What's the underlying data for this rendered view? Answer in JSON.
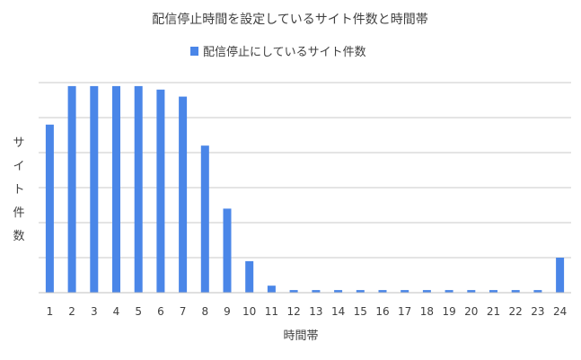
{
  "chart_data": {
    "type": "bar",
    "title": "配信停止時間を設定しているサイト件数と時間帯",
    "xlabel": "時間帯",
    "ylabel": "サイト件数",
    "ylim": [
      0,
      12
    ],
    "y_ticks_labeled": false,
    "grid": true,
    "legend_position": "top",
    "categories": [
      "1",
      "2",
      "3",
      "4",
      "5",
      "6",
      "7",
      "8",
      "9",
      "10",
      "11",
      "12",
      "13",
      "14",
      "15",
      "16",
      "17",
      "18",
      "19",
      "20",
      "21",
      "22",
      "23",
      "24"
    ],
    "series": [
      {
        "name": "配信停止にしているサイト件数",
        "color": "#4a86e8",
        "values": [
          9.6,
          11.8,
          11.8,
          11.8,
          11.8,
          11.6,
          11.2,
          8.4,
          4.8,
          1.8,
          0.4,
          0.15,
          0.15,
          0.15,
          0.15,
          0.15,
          0.15,
          0.15,
          0.15,
          0.15,
          0.15,
          0.15,
          0.15,
          2.0
        ]
      }
    ]
  }
}
